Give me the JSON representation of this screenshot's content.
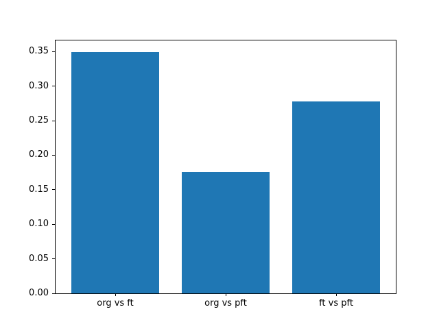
{
  "chart_data": {
    "type": "bar",
    "categories": [
      "org vs ft",
      "org vs pft",
      "ft vs pft"
    ],
    "values": [
      0.349,
      0.176,
      0.278
    ],
    "title": "",
    "xlabel": "",
    "ylabel": "",
    "ylim": [
      0,
      0.3661
    ],
    "xlim": [
      -0.54,
      2.54
    ],
    "yticks": [
      0.0,
      0.05,
      0.1,
      0.15,
      0.2,
      0.25,
      0.3,
      0.35
    ],
    "ytick_labels": [
      "0.00",
      "0.05",
      "0.10",
      "0.15",
      "0.20",
      "0.25",
      "0.30",
      "0.35"
    ],
    "bar_width": 0.8,
    "bar_color": "#1f77b4",
    "axis_color": "#000000",
    "background_color": "#ffffff",
    "grid": false,
    "legend": null
  }
}
